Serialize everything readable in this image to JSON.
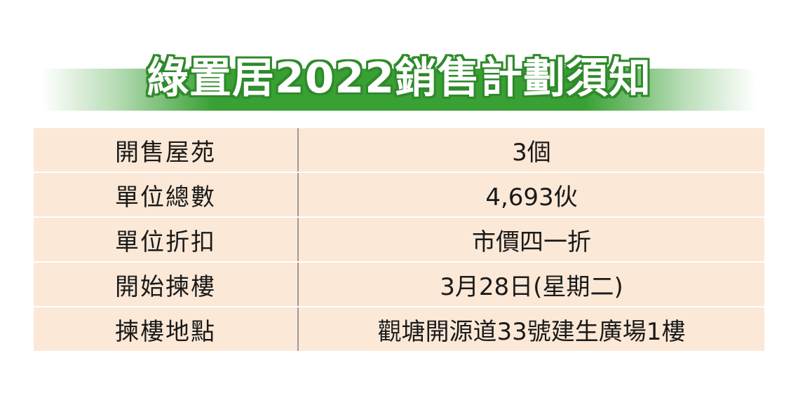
{
  "title": "綠置居2022銷售計劃須知",
  "colors": {
    "banner_green": "#39a034",
    "row_background": "#fbe8d6",
    "divider": "#9a9a9a"
  },
  "rows": [
    {
      "label": "開售屋苑",
      "value": "3個"
    },
    {
      "label": "單位總數",
      "value": "4,693伙"
    },
    {
      "label": "單位折扣",
      "value": "市價四一折"
    },
    {
      "label": "開始揀樓",
      "value": "3月28日(星期二)"
    },
    {
      "label": "揀樓地點",
      "value": "觀塘開源道33號建生廣場1樓"
    }
  ]
}
